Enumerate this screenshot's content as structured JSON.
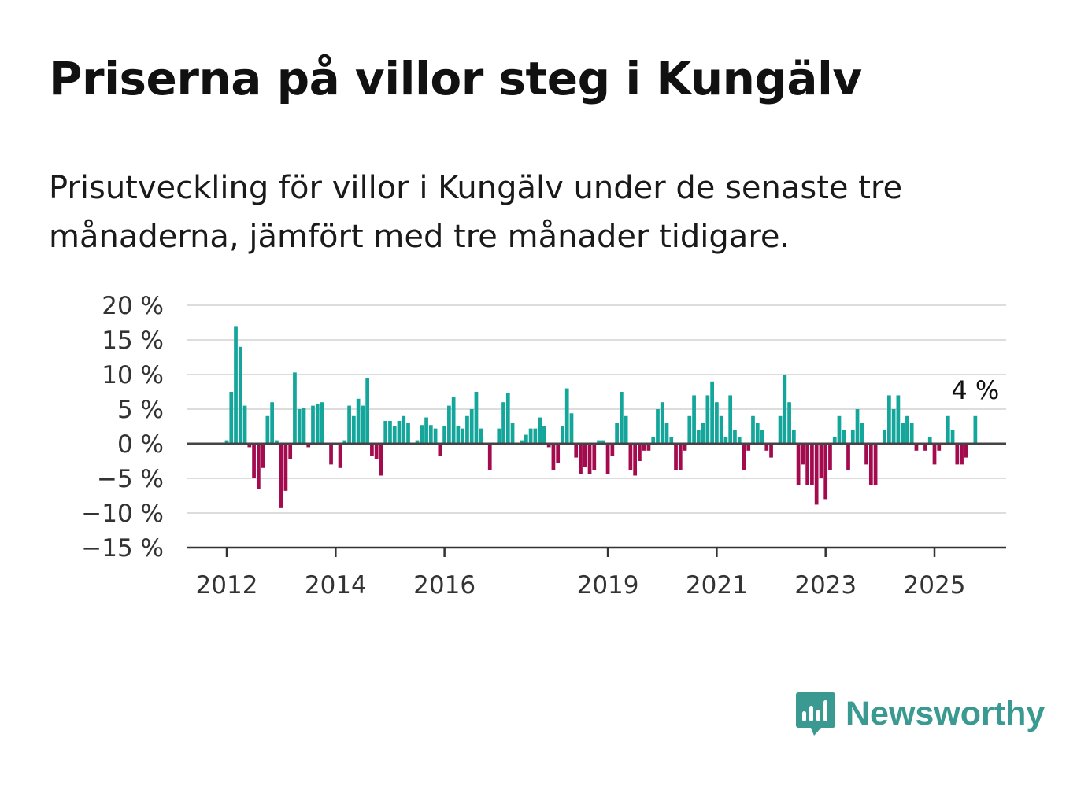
{
  "brand": "Newsworthy",
  "colors": {
    "positive": "#14a69b",
    "negative": "#a30b4e",
    "brand": "#3a9a91"
  },
  "chart_data": {
    "type": "bar",
    "title": "Priserna på villor steg i Kungälv",
    "subtitle": "Prisutveckling för villor i Kungälv under de senaste tre månaderna, jämfört med tre månader tidigare.",
    "xlabel": "",
    "ylabel": "",
    "ylim": [
      -15,
      20
    ],
    "y_ticks": [
      -15,
      -10,
      -5,
      0,
      5,
      10,
      15,
      20
    ],
    "y_tick_labels": [
      "−15 %",
      "−10 %",
      "−5 %",
      "0 %",
      "5 %",
      "10 %",
      "15 %",
      "20 %"
    ],
    "x_start": "2012-01",
    "x_end": "2025-08",
    "x_ticks": [
      {
        "x": "2012-01",
        "label": "2012"
      },
      {
        "x": "2014-01",
        "label": "2014"
      },
      {
        "x": "2016-01",
        "label": "2016"
      },
      {
        "x": "2019-01",
        "label": "2019"
      },
      {
        "x": "2021-01",
        "label": "2021"
      },
      {
        "x": "2023-01",
        "label": "2023"
      },
      {
        "x": "2025-01",
        "label": "2025"
      }
    ],
    "grid": true,
    "annotation": {
      "x": "2025-08",
      "label": "4 %"
    },
    "series": [
      {
        "values": [
          0.5,
          7.5,
          17,
          14,
          5.5,
          -0.5,
          -5,
          -6.5,
          -3.5,
          4,
          6,
          0.5,
          -9.3,
          -6.8,
          -2.2,
          10.3,
          5,
          5.2,
          -0.5,
          5.5,
          5.8,
          6,
          0,
          -3,
          0,
          -3.5,
          0.5,
          5.5,
          4,
          6.5,
          5.5,
          9.5,
          -1.8,
          -2.2,
          -4.6,
          3.3,
          3.3,
          2.5,
          3.3,
          4,
          3,
          0,
          0.5,
          2.7,
          3.8,
          2.7,
          2.2,
          -1.8,
          2.5,
          5.5,
          6.7,
          2.5,
          2.2,
          4,
          5,
          7.5,
          2.2,
          0,
          -3.8,
          0,
          2.2,
          6,
          7.3,
          3,
          0,
          0.5,
          1.3,
          2.2,
          2.2,
          3.8,
          2.5,
          -0.5,
          -3.8,
          -2.8,
          2.5,
          8,
          4.4,
          -2,
          -4.4,
          -3.3,
          -4.4,
          -3.8,
          0.5,
          0.5,
          -4.4,
          -1.8,
          3,
          7.5,
          4,
          -3.8,
          -4.6,
          -2.5,
          -1,
          -1,
          1,
          5,
          6,
          3,
          1,
          -3.8,
          -3.8,
          -1,
          4,
          7,
          2,
          3,
          7,
          9,
          6,
          4,
          1,
          7,
          2,
          1,
          -3.8,
          -1,
          4,
          3,
          2,
          -1,
          -2,
          0,
          4,
          10,
          6,
          2,
          -6,
          -3,
          -6,
          -6,
          -8.8,
          -5,
          -8,
          -3.8,
          1,
          4,
          2,
          -3.8,
          2,
          5,
          3,
          -3,
          -6,
          -6,
          0,
          2,
          7,
          5,
          7,
          3,
          4,
          3,
          -1,
          0,
          -1,
          1,
          -3,
          -1,
          0,
          4,
          2,
          -3,
          -3,
          -2,
          0,
          4
        ]
      }
    ]
  }
}
